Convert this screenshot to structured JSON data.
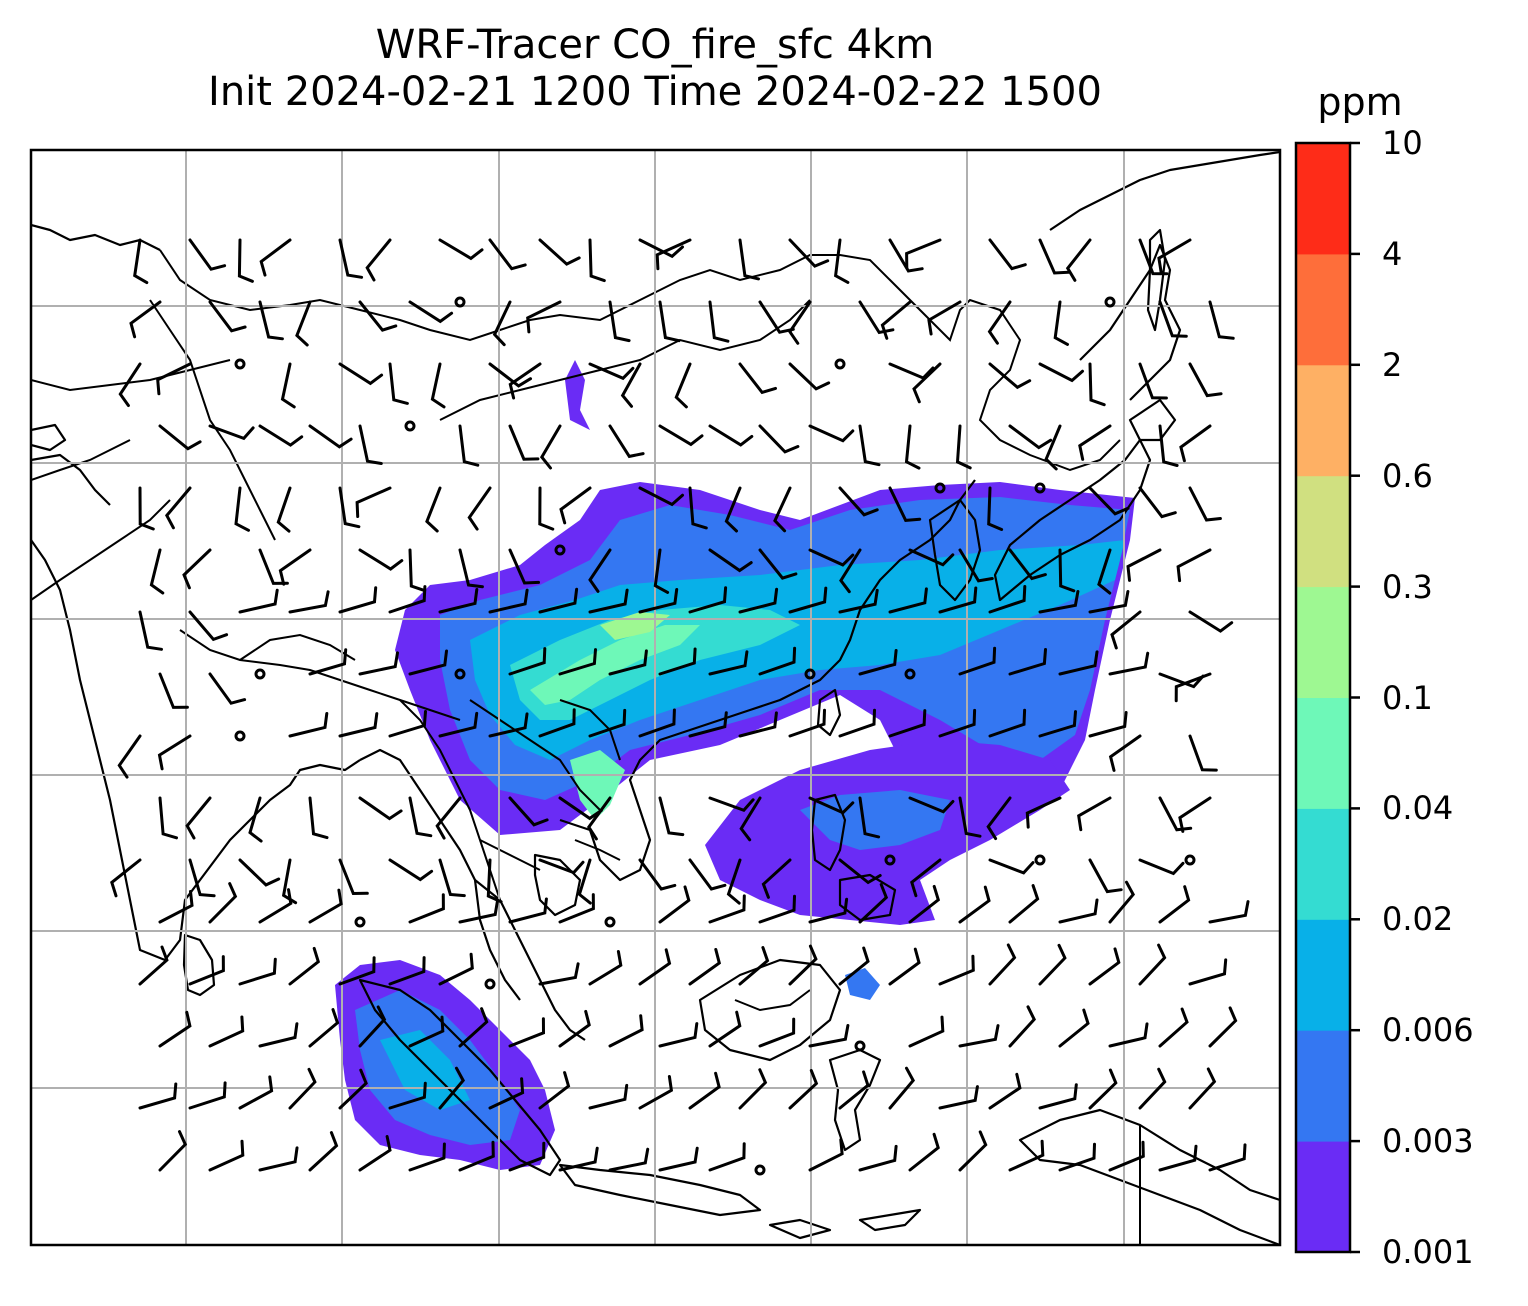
{
  "title": {
    "line1": "WRF-Tracer CO_fire_sfc 4km",
    "line2": "Init 2024-02-21 1200 Time 2024-02-22 1500"
  },
  "colorbar": {
    "unit": "ppm",
    "ticks": [
      "10",
      "4",
      "2",
      "0.6",
      "0.3",
      "0.1",
      "0.04",
      "0.02",
      "0.006",
      "0.003",
      "0.001"
    ],
    "colors": [
      "#6a2cf5",
      "#3477f2",
      "#08b0e8",
      "#34dcd2",
      "#6ef8b8",
      "#9ef892",
      "#d0e080",
      "#feb064",
      "#fe6e3a",
      "#fe2c18"
    ]
  },
  "chart_data": {
    "type": "heatmap",
    "title": "WRF-Tracer CO_fire_sfc 4km",
    "subtitle": "Init 2024-02-21 1200 Time 2024-02-22 1500",
    "variable": "CO_fire_sfc",
    "unit": "ppm",
    "levels": [
      0.001,
      0.003,
      0.006,
      0.02,
      0.04,
      0.1,
      0.3,
      0.6,
      2,
      4,
      10
    ],
    "overlays": [
      "coastlines",
      "country borders",
      "wind barbs",
      "gridlines"
    ],
    "grid": true
  }
}
